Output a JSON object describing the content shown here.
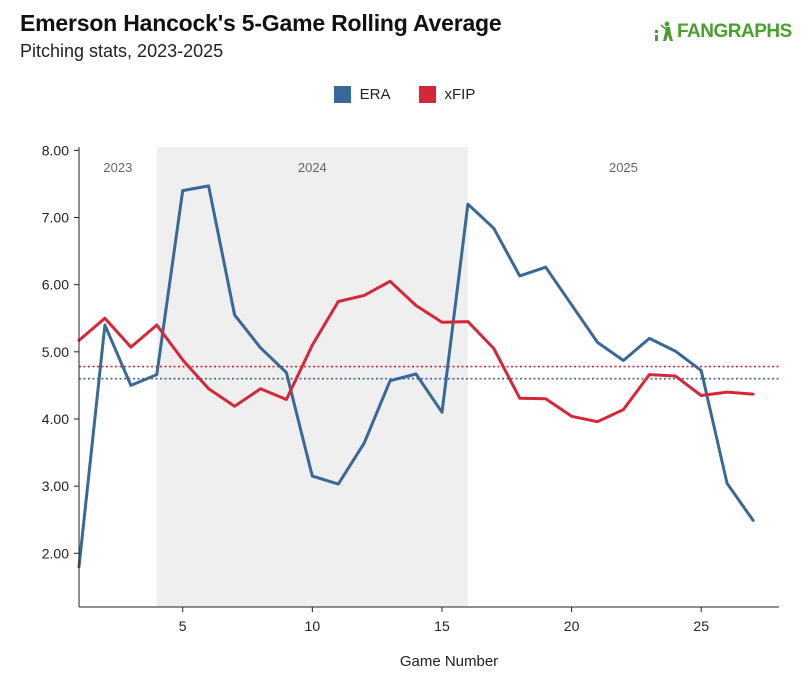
{
  "header": {
    "title": "Emerson Hancock's 5-Game Rolling Average",
    "subtitle": "Pitching stats, 2023-2025"
  },
  "logo": {
    "text": "FANGRAPHS",
    "color": "#4aa02c"
  },
  "chart_data": {
    "type": "line",
    "xlabel": "Game Number",
    "ylabel": "",
    "xlim": [
      1,
      28
    ],
    "ylim": [
      1.2,
      8.05
    ],
    "yticks": [
      2,
      3,
      4,
      5,
      6,
      7,
      8
    ],
    "ytick_labels": [
      "2.00",
      "3.00",
      "4.00",
      "5.00",
      "6.00",
      "7.00",
      "8.00"
    ],
    "xticks": [
      5,
      10,
      15,
      20,
      25
    ],
    "xtick_labels": [
      "5",
      "10",
      "15",
      "20",
      "25"
    ],
    "x": [
      1,
      2,
      3,
      4,
      5,
      6,
      7,
      8,
      9,
      10,
      11,
      12,
      13,
      14,
      15,
      16,
      17,
      18,
      19,
      20,
      21,
      22,
      23,
      24,
      25,
      26,
      27
    ],
    "series": [
      {
        "name": "ERA",
        "color": "#3a6897",
        "values": [
          1.8,
          5.4,
          4.5,
          4.66,
          7.4,
          7.47,
          5.55,
          5.06,
          4.69,
          3.15,
          3.03,
          3.64,
          4.57,
          4.67,
          4.1,
          7.2,
          6.84,
          6.13,
          6.26,
          5.7,
          5.14,
          4.87,
          5.2,
          5.01,
          4.72,
          3.04,
          2.49
        ],
        "average": 4.6
      },
      {
        "name": "xFIP",
        "color": "#d42838",
        "values": [
          5.17,
          5.5,
          5.07,
          5.4,
          4.88,
          4.45,
          4.19,
          4.45,
          4.29,
          5.1,
          5.75,
          5.84,
          6.05,
          5.69,
          5.44,
          5.45,
          5.05,
          4.31,
          4.3,
          4.04,
          3.96,
          4.14,
          4.66,
          4.64,
          4.35,
          4.4,
          4.37
        ],
        "average": 4.78
      }
    ],
    "seasons": [
      {
        "label": "2023",
        "start": 1,
        "end": 4,
        "shaded": false
      },
      {
        "label": "2024",
        "start": 4,
        "end": 16,
        "shaded": true
      },
      {
        "label": "2025",
        "start": 16,
        "end": 28,
        "shaded": false
      }
    ],
    "legend_position": "top-center",
    "grid": false,
    "shade_color": "#efefef"
  }
}
